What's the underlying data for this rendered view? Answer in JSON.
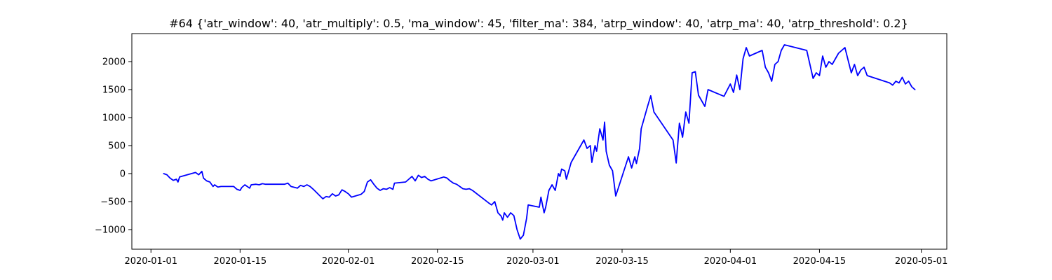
{
  "chart_data": {
    "type": "line",
    "title": "#64 {'atr_window': 40, 'atr_multiply': 0.5, 'ma_window': 45, 'filter_ma': 384, 'atrp_window': 40, 'atrp_ma': 40, 'atrp_threshold': 0.2}",
    "xlabel": "",
    "ylabel": "",
    "x_type": "date",
    "xlim": [
      "2019-12-29",
      "2020-05-05"
    ],
    "ylim": [
      -1350,
      2500
    ],
    "xticks": [
      "2020-01-01",
      "2020-01-15",
      "2020-02-01",
      "2020-02-15",
      "2020-03-01",
      "2020-03-15",
      "2020-04-01",
      "2020-04-15",
      "2020-05-01"
    ],
    "yticks": [
      -1000,
      -500,
      0,
      500,
      1000,
      1500,
      2000
    ],
    "grid": false,
    "series": [
      {
        "color": "#0000ff",
        "points": [
          [
            "2020-01-03",
            0
          ],
          [
            "2020-01-03 12:00",
            -20
          ],
          [
            "2020-01-04",
            -80
          ],
          [
            "2020-01-04 12:00",
            -120
          ],
          [
            "2020-01-05",
            -100
          ],
          [
            "2020-01-05 06:00",
            -150
          ],
          [
            "2020-01-05 12:00",
            -60
          ],
          [
            "2020-01-08",
            20
          ],
          [
            "2020-01-08 12:00",
            -20
          ],
          [
            "2020-01-09",
            40
          ],
          [
            "2020-01-09 06:00",
            -80
          ],
          [
            "2020-01-09 18:00",
            -130
          ],
          [
            "2020-01-10 06:00",
            -150
          ],
          [
            "2020-01-10 18:00",
            -230
          ],
          [
            "2020-01-11",
            -200
          ],
          [
            "2020-01-11 12:00",
            -240
          ],
          [
            "2020-01-12",
            -230
          ],
          [
            "2020-01-14",
            -230
          ],
          [
            "2020-01-14 12:00",
            -280
          ],
          [
            "2020-01-15",
            -300
          ],
          [
            "2020-01-15 06:00",
            -250
          ],
          [
            "2020-01-15 18:00",
            -200
          ],
          [
            "2020-01-16 12:00",
            -260
          ],
          [
            "2020-01-16 18:00",
            -200
          ],
          [
            "2020-01-17 12:00",
            -190
          ],
          [
            "2020-01-18",
            -200
          ],
          [
            "2020-01-18 12:00",
            -180
          ],
          [
            "2020-01-19",
            -190
          ],
          [
            "2020-01-22",
            -190
          ],
          [
            "2020-01-22 12:00",
            -170
          ],
          [
            "2020-01-23",
            -230
          ],
          [
            "2020-01-24",
            -260
          ],
          [
            "2020-01-24 12:00",
            -210
          ],
          [
            "2020-01-25",
            -230
          ],
          [
            "2020-01-25 12:00",
            -200
          ],
          [
            "2020-01-26",
            -230
          ],
          [
            "2020-01-26 12:00",
            -280
          ],
          [
            "2020-01-28",
            -450
          ],
          [
            "2020-01-28 12:00",
            -410
          ],
          [
            "2020-01-29",
            -420
          ],
          [
            "2020-01-29 12:00",
            -360
          ],
          [
            "2020-01-30",
            -400
          ],
          [
            "2020-01-30 12:00",
            -380
          ],
          [
            "2020-01-31",
            -290
          ],
          [
            "2020-01-31 12:00",
            -320
          ],
          [
            "2020-02-01",
            -360
          ],
          [
            "2020-02-01 12:00",
            -420
          ],
          [
            "2020-02-03",
            -370
          ],
          [
            "2020-02-03 12:00",
            -320
          ],
          [
            "2020-02-04",
            -150
          ],
          [
            "2020-02-04 12:00",
            -110
          ],
          [
            "2020-02-05",
            -190
          ],
          [
            "2020-02-05 12:00",
            -260
          ],
          [
            "2020-02-06",
            -300
          ],
          [
            "2020-02-06 12:00",
            -270
          ],
          [
            "2020-02-07",
            -280
          ],
          [
            "2020-02-07 12:00",
            -250
          ],
          [
            "2020-02-08",
            -280
          ],
          [
            "2020-02-08 06:00",
            -170
          ],
          [
            "2020-02-10",
            -150
          ],
          [
            "2020-02-10 12:00",
            -100
          ],
          [
            "2020-02-11",
            -50
          ],
          [
            "2020-02-11 12:00",
            -130
          ],
          [
            "2020-02-12",
            -30
          ],
          [
            "2020-02-12 12:00",
            -70
          ],
          [
            "2020-02-13",
            -50
          ],
          [
            "2020-02-13 12:00",
            -100
          ],
          [
            "2020-02-14",
            -130
          ],
          [
            "2020-02-16",
            -60
          ],
          [
            "2020-02-16 12:00",
            -80
          ],
          [
            "2020-02-17",
            -130
          ],
          [
            "2020-02-17 12:00",
            -170
          ],
          [
            "2020-02-18",
            -190
          ],
          [
            "2020-02-18 12:00",
            -230
          ],
          [
            "2020-02-19",
            -270
          ],
          [
            "2020-02-19 12:00",
            -280
          ],
          [
            "2020-02-20",
            -270
          ],
          [
            "2020-02-20 12:00",
            -300
          ],
          [
            "2020-02-23",
            -520
          ],
          [
            "2020-02-23 12:00",
            -560
          ],
          [
            "2020-02-24",
            -500
          ],
          [
            "2020-02-24 12:00",
            -700
          ],
          [
            "2020-02-25",
            -760
          ],
          [
            "2020-02-25 06:00",
            -830
          ],
          [
            "2020-02-25 12:00",
            -700
          ],
          [
            "2020-02-26",
            -780
          ],
          [
            "2020-02-26 12:00",
            -700
          ],
          [
            "2020-02-27",
            -750
          ],
          [
            "2020-02-27 12:00",
            -1000
          ],
          [
            "2020-02-28",
            -1170
          ],
          [
            "2020-02-28 12:00",
            -1100
          ],
          [
            "2020-02-29",
            -800
          ],
          [
            "2020-02-29 06:00",
            -560
          ],
          [
            "2020-03-02",
            -600
          ],
          [
            "2020-03-02 06:00",
            -420
          ],
          [
            "2020-03-02 18:00",
            -700
          ],
          [
            "2020-03-03",
            -600
          ],
          [
            "2020-03-03 12:00",
            -300
          ],
          [
            "2020-03-04",
            -200
          ],
          [
            "2020-03-04 12:00",
            -300
          ],
          [
            "2020-03-05",
            0
          ],
          [
            "2020-03-05 06:00",
            -50
          ],
          [
            "2020-03-05 12:00",
            80
          ],
          [
            "2020-03-06",
            50
          ],
          [
            "2020-03-06 06:00",
            -100
          ],
          [
            "2020-03-06 18:00",
            100
          ],
          [
            "2020-03-07",
            200
          ],
          [
            "2020-03-09",
            600
          ],
          [
            "2020-03-09 12:00",
            450
          ],
          [
            "2020-03-10",
            500
          ],
          [
            "2020-03-10 06:00",
            200
          ],
          [
            "2020-03-10 18:00",
            500
          ],
          [
            "2020-03-11",
            400
          ],
          [
            "2020-03-11 12:00",
            800
          ],
          [
            "2020-03-12",
            600
          ],
          [
            "2020-03-12 06:00",
            920
          ],
          [
            "2020-03-12 12:00",
            400
          ],
          [
            "2020-03-13",
            150
          ],
          [
            "2020-03-13 12:00",
            50
          ],
          [
            "2020-03-14",
            -400
          ],
          [
            "2020-03-16",
            300
          ],
          [
            "2020-03-16 12:00",
            100
          ],
          [
            "2020-03-17",
            300
          ],
          [
            "2020-03-17 06:00",
            180
          ],
          [
            "2020-03-17 18:00",
            450
          ],
          [
            "2020-03-18",
            800
          ],
          [
            "2020-03-19",
            1200
          ],
          [
            "2020-03-19 12:00",
            1390
          ],
          [
            "2020-03-20",
            1100
          ],
          [
            "2020-03-23",
            600
          ],
          [
            "2020-03-23 12:00",
            190
          ],
          [
            "2020-03-24",
            900
          ],
          [
            "2020-03-24 12:00",
            650
          ],
          [
            "2020-03-25",
            1100
          ],
          [
            "2020-03-25 12:00",
            900
          ],
          [
            "2020-03-26",
            1800
          ],
          [
            "2020-03-26 12:00",
            1820
          ],
          [
            "2020-03-27",
            1400
          ],
          [
            "2020-03-28",
            1200
          ],
          [
            "2020-03-28 12:00",
            1500
          ],
          [
            "2020-03-31",
            1380
          ],
          [
            "2020-04-01",
            1600
          ],
          [
            "2020-04-01 12:00",
            1450
          ],
          [
            "2020-04-02",
            1760
          ],
          [
            "2020-04-02 12:00",
            1500
          ],
          [
            "2020-04-03",
            2050
          ],
          [
            "2020-04-03 12:00",
            2250
          ],
          [
            "2020-04-04",
            2100
          ],
          [
            "2020-04-06",
            2200
          ],
          [
            "2020-04-06 12:00",
            1900
          ],
          [
            "2020-04-07",
            1800
          ],
          [
            "2020-04-07 12:00",
            1650
          ],
          [
            "2020-04-08",
            1950
          ],
          [
            "2020-04-08 12:00",
            2000
          ],
          [
            "2020-04-09",
            2200
          ],
          [
            "2020-04-09 12:00",
            2300
          ],
          [
            "2020-04-13",
            2200
          ],
          [
            "2020-04-14",
            1700
          ],
          [
            "2020-04-14 12:00",
            1800
          ],
          [
            "2020-04-15",
            1750
          ],
          [
            "2020-04-15 12:00",
            2100
          ],
          [
            "2020-04-16",
            1900
          ],
          [
            "2020-04-16 12:00",
            2000
          ],
          [
            "2020-04-17",
            1950
          ],
          [
            "2020-04-18",
            2150
          ],
          [
            "2020-04-18 12:00",
            2200
          ],
          [
            "2020-04-19",
            2250
          ],
          [
            "2020-04-20",
            1800
          ],
          [
            "2020-04-20 12:00",
            1950
          ],
          [
            "2020-04-21",
            1750
          ],
          [
            "2020-04-21 12:00",
            1850
          ],
          [
            "2020-04-22",
            1900
          ],
          [
            "2020-04-22 12:00",
            1750
          ],
          [
            "2020-04-26",
            1620
          ],
          [
            "2020-04-26 12:00",
            1580
          ],
          [
            "2020-04-27",
            1650
          ],
          [
            "2020-04-27 12:00",
            1620
          ],
          [
            "2020-04-28",
            1720
          ],
          [
            "2020-04-28 12:00",
            1600
          ],
          [
            "2020-04-29",
            1650
          ],
          [
            "2020-04-29 12:00",
            1550
          ],
          [
            "2020-04-30",
            1500
          ]
        ]
      }
    ]
  }
}
